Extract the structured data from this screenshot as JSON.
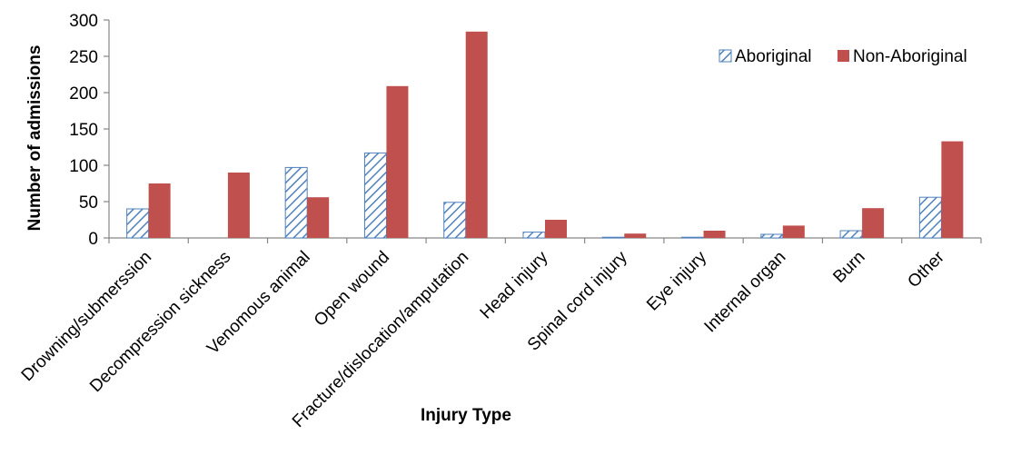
{
  "chart_data": {
    "type": "bar",
    "categories": [
      "Drowning/submerssion",
      "Decompression sickness",
      "Venomous animal",
      "Open wound",
      "Fracture/dislocation/amputation",
      "Head injury",
      "Spinal cord injury",
      "Eye injury",
      "Internal organ",
      "Burn",
      "Other"
    ],
    "series": [
      {
        "name": "Aboriginal",
        "values": [
          40,
          0,
          97,
          117,
          49,
          8,
          1,
          1,
          5,
          10,
          56
        ],
        "color": "#4f81bd",
        "pattern": "diagonal-hatch"
      },
      {
        "name": "Non-Aboriginal",
        "values": [
          75,
          90,
          56,
          209,
          284,
          25,
          6,
          10,
          17,
          41,
          133
        ],
        "color": "#c0504d",
        "pattern": "solid"
      }
    ],
    "xlabel": "Injury  Type",
    "ylabel": "Number of admissions",
    "ylim": [
      0,
      300
    ],
    "yticks": [
      0,
      50,
      100,
      150,
      200,
      250,
      300
    ],
    "grid": false,
    "legend_position": "top-right"
  }
}
